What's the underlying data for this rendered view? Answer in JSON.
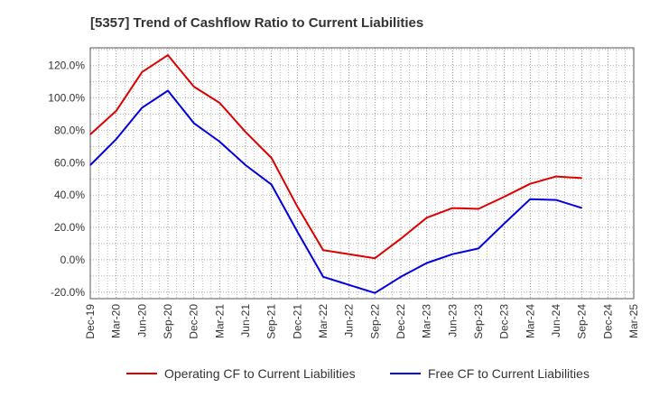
{
  "chart_data": {
    "type": "line",
    "title": "[5357]  Trend of Cashflow Ratio to Current Liabilities",
    "xlabel": "",
    "ylabel": "",
    "x_ticks": [
      "Dec-19",
      "Mar-20",
      "Jun-20",
      "Sep-20",
      "Dec-20",
      "Mar-21",
      "Jun-21",
      "Sep-21",
      "Dec-21",
      "Mar-22",
      "Jun-22",
      "Sep-22",
      "Dec-22",
      "Mar-23",
      "Jun-23",
      "Sep-23",
      "Dec-23",
      "Mar-24",
      "Jun-24",
      "Sep-24",
      "Dec-24",
      "Mar-25"
    ],
    "y_ticks": [
      "-20.0%",
      "0.0%",
      "20.0%",
      "40.0%",
      "60.0%",
      "80.0%",
      "100.0%",
      "120.0%"
    ],
    "ylim": [
      -24,
      131
    ],
    "grid": true,
    "legend_position": "bottom",
    "series": [
      {
        "name": "Operating CF to Current Liabilities",
        "color": "#dd0000",
        "values": [
          77.5,
          92,
          116,
          126.5,
          107,
          97,
          79,
          63,
          33,
          6,
          3.5,
          1,
          13,
          26,
          32,
          31.5,
          39,
          47,
          51.5,
          50.5
        ]
      },
      {
        "name": "Free CF to Current Liabilities",
        "color": "#0000dd",
        "values": [
          58.5,
          74.5,
          94,
          104.5,
          84.5,
          73,
          58.5,
          46.5,
          17.5,
          -10.5,
          -15.5,
          -20.5,
          -10.5,
          -2,
          3.5,
          7,
          22.5,
          37.5,
          37,
          32
        ]
      }
    ]
  }
}
